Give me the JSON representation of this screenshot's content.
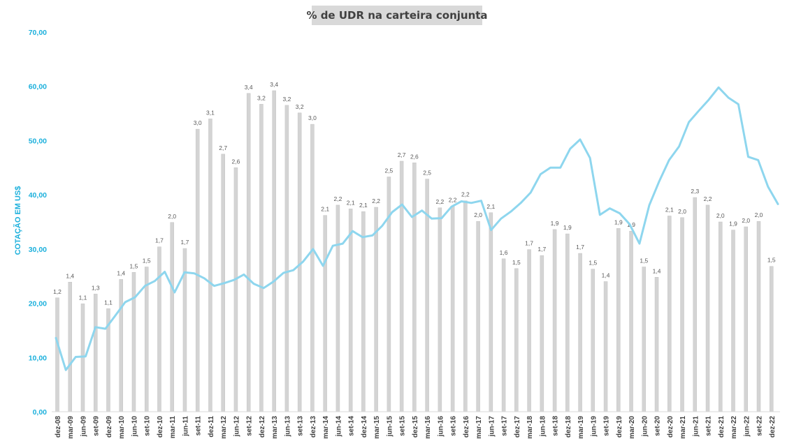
{
  "chart_data": {
    "type": "bar+line",
    "title": "% de UDR na carteira conjunta",
    "ylabel": "COTAÇÃO EM US$",
    "xlabel": "",
    "ylim": [
      0,
      70
    ],
    "yticks": [
      "0,00",
      "10,00",
      "20,00",
      "30,00",
      "40,00",
      "50,00",
      "60,00",
      "70,00"
    ],
    "x_tick_labels": [
      "dez-08",
      "mar-09",
      "jun-09",
      "set-09",
      "dez-09",
      "mar-10",
      "jun-10",
      "set-10",
      "dez-10",
      "mar-11",
      "jun-11",
      "set-11",
      "dez-11",
      "mar-12",
      "jun-12",
      "set-12",
      "dez-12",
      "mar-13",
      "jun-13",
      "set-13",
      "dez-13",
      "mar-14",
      "jun-14",
      "set-14",
      "dez-14",
      "mar-15",
      "jun-15",
      "set-15",
      "dez-15",
      "mar-16",
      "jun-16",
      "set-16",
      "dez-16",
      "mar-17",
      "jun-17",
      "set-17",
      "dez-17",
      "mar-18",
      "jun-18",
      "set-18",
      "dez-18",
      "mar-19",
      "jun-19",
      "set-19",
      "dez-19",
      "mar-20",
      "jun-20",
      "set-20",
      "dez-20",
      "mar-21",
      "jun-21",
      "set-21",
      "dez-21",
      "mar-22",
      "jun-22",
      "set-22",
      "dez-22"
    ],
    "bar_labels": [
      "1,2",
      "1,4",
      "1,1",
      "1,3",
      "1,1",
      "1,4",
      "1,5",
      "1,5",
      "1,7",
      "2,0",
      "1,7",
      "3,0",
      "3,1",
      "2,7",
      "2,6",
      "3,4",
      "3,2",
      "3,4",
      "3,2",
      "3,2",
      "3,0",
      "2,1",
      "2,2",
      "2,1",
      "2,1",
      "2,2",
      "2,5",
      "2,7",
      "2,6",
      "2,5",
      "2,2",
      "2,2",
      "2,2",
      "2,0",
      "2,1",
      "1,6",
      "1,5",
      "1,7",
      "1,7",
      "1,9",
      "1,9",
      "1,7",
      "1,5",
      "1,4",
      "1,9",
      "1,9",
      "1,5",
      "1,4",
      "2,1",
      "2,0",
      "2,3",
      "2,2",
      "2,0",
      "1,9",
      "2,0",
      "2,0",
      "1,5"
    ],
    "series": [
      {
        "name": "",
        "type": "bar",
        "color": "#d0d0d0",
        "values": [
          1.2,
          1.4,
          1.1,
          1.3,
          1.1,
          1.4,
          1.5,
          1.5,
          1.7,
          2.0,
          1.7,
          3.0,
          3.1,
          2.7,
          2.6,
          3.4,
          3.2,
          3.4,
          3.2,
          3.2,
          3.0,
          2.1,
          2.2,
          2.1,
          2.1,
          2.2,
          2.5,
          2.7,
          2.6,
          2.5,
          2.2,
          2.2,
          2.2,
          2.0,
          2.1,
          1.6,
          1.5,
          1.7,
          1.7,
          1.9,
          1.9,
          1.7,
          1.5,
          1.4,
          1.9,
          1.9,
          1.5,
          1.4,
          2.1,
          2.0,
          2.3,
          2.2,
          2.0,
          1.9,
          2.0,
          2.0,
          1.5
        ],
        "plotted_in_yaxis_units": [
          21.0,
          23.9,
          19.9,
          21.7,
          19.0,
          24.4,
          25.7,
          26.7,
          30.4,
          34.9,
          30.1,
          52.1,
          54.0,
          47.5,
          45.0,
          58.7,
          56.7,
          59.2,
          56.5,
          55.1,
          53.0,
          36.2,
          38.1,
          37.4,
          36.9,
          37.7,
          43.3,
          46.2,
          45.9,
          42.9,
          37.6,
          37.9,
          38.9,
          35.1,
          36.7,
          28.2,
          26.4,
          29.9,
          28.8,
          33.6,
          32.8,
          29.2,
          26.3,
          24.0,
          33.8,
          33.3,
          26.7,
          24.8,
          36.1,
          35.8,
          39.5,
          38.1,
          35.0,
          33.5,
          34.1,
          35.1,
          26.8
        ]
      },
      {
        "name": "",
        "type": "line",
        "color": "#8ed6ee",
        "values": [
          13.6,
          7.7,
          10.1,
          10.2,
          15.6,
          15.3,
          17.7,
          20.2,
          21.1,
          23.2,
          24.1,
          25.8,
          22.0,
          25.7,
          25.5,
          24.6,
          23.2,
          23.7,
          24.3,
          25.3,
          23.6,
          22.8,
          24.0,
          25.6,
          26.1,
          27.7,
          30.0,
          26.9,
          30.6,
          31.0,
          33.3,
          32.2,
          32.5,
          34.3,
          36.8,
          38.2,
          35.9,
          37.1,
          35.6,
          35.7,
          37.8,
          38.8,
          38.5,
          38.9,
          33.5,
          35.6,
          36.9,
          38.5,
          40.4,
          43.8,
          45.0,
          45.0,
          48.5,
          50.2,
          46.8,
          36.3,
          37.5,
          36.6,
          34.6,
          31.0,
          38.1,
          42.5,
          46.4,
          48.9,
          53.4,
          55.5,
          57.5,
          59.8,
          57.9,
          56.7,
          47.0,
          46.4,
          41.5,
          38.3
        ]
      }
    ],
    "grid": false,
    "legend": "none"
  }
}
